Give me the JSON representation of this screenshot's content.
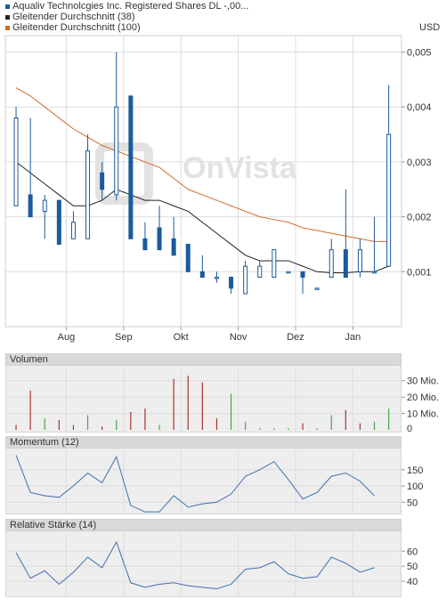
{
  "legend": {
    "title": "Aqualiv Technolcgies Inc. Registered Shares DL -,00...",
    "ma38": "Gleitender Durchschnitt (38)",
    "ma100": "Gleitender Durchschnitt (100)"
  },
  "currency": "USD",
  "watermark": "OnVista",
  "colors": {
    "up": "#1a5a9c",
    "ma38": "#222222",
    "ma100": "#d4682a",
    "vol_up": "#4aa64a",
    "vol_down": "#a83232",
    "ind": "#3f6fb0"
  },
  "chart_data": [
    {
      "type": "candlestick",
      "ylim": [
        0,
        0.0053
      ],
      "yticks": [
        0.001,
        0.002,
        0.003,
        0.004,
        0.005
      ],
      "ytick_labels": [
        "0,001",
        "0,002",
        "0,003",
        "0,004",
        "0,005"
      ],
      "xtick_labels": [
        "Aug",
        "Sep",
        "Okt",
        "Nov",
        "Dez",
        "Jan"
      ],
      "xtick_pos": [
        8,
        16,
        24,
        32,
        40,
        48
      ],
      "candles": [
        {
          "i": 1,
          "o": 0.0022,
          "h": 0.004,
          "l": 0.0022,
          "c": 0.0038
        },
        {
          "i": 3,
          "o": 0.0024,
          "h": 0.0038,
          "l": 0.002,
          "c": 0.002
        },
        {
          "i": 5,
          "o": 0.0021,
          "h": 0.0024,
          "l": 0.0016,
          "c": 0.0023
        },
        {
          "i": 7,
          "o": 0.0023,
          "h": 0.0023,
          "l": 0.0015,
          "c": 0.0015
        },
        {
          "i": 9,
          "o": 0.0016,
          "h": 0.0021,
          "l": 0.0016,
          "c": 0.0019
        },
        {
          "i": 11,
          "o": 0.0016,
          "h": 0.0035,
          "l": 0.0016,
          "c": 0.0032
        },
        {
          "i": 13,
          "o": 0.0028,
          "h": 0.003,
          "l": 0.0023,
          "c": 0.0025
        },
        {
          "i": 15,
          "o": 0.0024,
          "h": 0.005,
          "l": 0.0023,
          "c": 0.004
        },
        {
          "i": 17,
          "o": 0.0042,
          "h": 0.0042,
          "l": 0.0016,
          "c": 0.0016
        },
        {
          "i": 19,
          "o": 0.0016,
          "h": 0.0019,
          "l": 0.0014,
          "c": 0.0014
        },
        {
          "i": 21,
          "o": 0.0018,
          "h": 0.0022,
          "l": 0.0014,
          "c": 0.0014
        },
        {
          "i": 23,
          "o": 0.0016,
          "h": 0.002,
          "l": 0.0013,
          "c": 0.0013
        },
        {
          "i": 25,
          "o": 0.0015,
          "h": 0.0015,
          "l": 0.001,
          "c": 0.001
        },
        {
          "i": 27,
          "o": 0.001,
          "h": 0.0013,
          "l": 0.0009,
          "c": 0.0009
        },
        {
          "i": 29,
          "o": 0.0009,
          "h": 0.001,
          "l": 0.0008,
          "c": 0.0009
        },
        {
          "i": 31,
          "o": 0.0009,
          "h": 0.0009,
          "l": 0.0006,
          "c": 0.0007
        },
        {
          "i": 33,
          "o": 0.0006,
          "h": 0.0012,
          "l": 0.0006,
          "c": 0.0011
        },
        {
          "i": 35,
          "o": 0.0009,
          "h": 0.0012,
          "l": 0.0009,
          "c": 0.0011
        },
        {
          "i": 37,
          "o": 0.0009,
          "h": 0.0014,
          "l": 0.0009,
          "c": 0.0014
        },
        {
          "i": 39,
          "o": 0.001,
          "h": 0.001,
          "l": 0.001,
          "c": 0.001
        },
        {
          "i": 41,
          "o": 0.001,
          "h": 0.001,
          "l": 0.0006,
          "c": 0.0009
        },
        {
          "i": 43,
          "o": 0.0007,
          "h": 0.0007,
          "l": 0.0007,
          "c": 0.0007
        },
        {
          "i": 45,
          "o": 0.0009,
          "h": 0.0016,
          "l": 0.0009,
          "c": 0.0014
        },
        {
          "i": 47,
          "o": 0.0014,
          "h": 0.0025,
          "l": 0.0009,
          "c": 0.0009
        },
        {
          "i": 49,
          "o": 0.001,
          "h": 0.0016,
          "l": 0.0009,
          "c": 0.0014
        },
        {
          "i": 51,
          "o": 0.001,
          "h": 0.002,
          "l": 0.001,
          "c": 0.001
        },
        {
          "i": 53,
          "o": 0.0011,
          "h": 0.0044,
          "l": 0.0011,
          "c": 0.0035
        }
      ],
      "ma38": [
        [
          1,
          0.003
        ],
        [
          3,
          0.0028
        ],
        [
          5,
          0.0026
        ],
        [
          7,
          0.0024
        ],
        [
          9,
          0.0022
        ],
        [
          11,
          0.0022
        ],
        [
          13,
          0.0023
        ],
        [
          15,
          0.0025
        ],
        [
          17,
          0.0024
        ],
        [
          19,
          0.0023
        ],
        [
          21,
          0.0023
        ],
        [
          23,
          0.0022
        ],
        [
          25,
          0.0021
        ],
        [
          27,
          0.0019
        ],
        [
          29,
          0.0017
        ],
        [
          31,
          0.0015
        ],
        [
          33,
          0.0013
        ],
        [
          35,
          0.0012
        ],
        [
          37,
          0.0012
        ],
        [
          39,
          0.0012
        ],
        [
          41,
          0.0011
        ],
        [
          43,
          0.001
        ],
        [
          45,
          0.00098
        ],
        [
          47,
          0.00098
        ],
        [
          49,
          0.001
        ],
        [
          51,
          0.001
        ],
        [
          53,
          0.0011
        ]
      ],
      "ma100": [
        [
          1,
          0.00435
        ],
        [
          3,
          0.0042
        ],
        [
          5,
          0.004
        ],
        [
          7,
          0.0038
        ],
        [
          9,
          0.0036
        ],
        [
          11,
          0.00345
        ],
        [
          13,
          0.0033
        ],
        [
          15,
          0.0032
        ],
        [
          17,
          0.0031
        ],
        [
          19,
          0.003
        ],
        [
          21,
          0.0029
        ],
        [
          23,
          0.0027
        ],
        [
          25,
          0.0025
        ],
        [
          27,
          0.0024
        ],
        [
          29,
          0.0023
        ],
        [
          31,
          0.0022
        ],
        [
          33,
          0.0021
        ],
        [
          35,
          0.002
        ],
        [
          37,
          0.00195
        ],
        [
          39,
          0.0019
        ],
        [
          41,
          0.0018
        ],
        [
          43,
          0.00175
        ],
        [
          45,
          0.0017
        ],
        [
          47,
          0.00165
        ],
        [
          49,
          0.0016
        ],
        [
          51,
          0.00155
        ],
        [
          53,
          0.00155
        ]
      ]
    },
    {
      "type": "bar",
      "title": "Volumen",
      "ylim": [
        0,
        38
      ],
      "yticks": [
        10,
        20,
        30
      ],
      "ytick_labels": [
        "10 Mio.",
        "20 Mio.",
        "30 Mio."
      ],
      "extra_label": "0",
      "bars": [
        {
          "i": 1,
          "v": 3,
          "d": "down"
        },
        {
          "i": 3,
          "v": 24,
          "d": "down"
        },
        {
          "i": 5,
          "v": 7,
          "d": "up"
        },
        {
          "i": 7,
          "v": 6,
          "d": "down"
        },
        {
          "i": 9,
          "v": 3,
          "d": "down"
        },
        {
          "i": 11,
          "v": 9,
          "d": "up"
        },
        {
          "i": 13,
          "v": 2,
          "d": "down"
        },
        {
          "i": 15,
          "v": 6,
          "d": "up"
        },
        {
          "i": 17,
          "v": 11,
          "d": "down"
        },
        {
          "i": 19,
          "v": 13,
          "d": "down"
        },
        {
          "i": 21,
          "v": 3,
          "d": "up"
        },
        {
          "i": 23,
          "v": 31,
          "d": "down"
        },
        {
          "i": 25,
          "v": 33,
          "d": "down"
        },
        {
          "i": 27,
          "v": 29,
          "d": "down"
        },
        {
          "i": 29,
          "v": 7,
          "d": "down"
        },
        {
          "i": 31,
          "v": 22,
          "d": "up"
        },
        {
          "i": 33,
          "v": 5,
          "d": "up"
        },
        {
          "i": 35,
          "v": 1,
          "d": "up"
        },
        {
          "i": 37,
          "v": 1,
          "d": "up"
        },
        {
          "i": 39,
          "v": 1,
          "d": "up"
        },
        {
          "i": 41,
          "v": 4,
          "d": "down"
        },
        {
          "i": 43,
          "v": 1,
          "d": "up"
        },
        {
          "i": 45,
          "v": 9,
          "d": "up"
        },
        {
          "i": 47,
          "v": 12,
          "d": "down"
        },
        {
          "i": 49,
          "v": 4,
          "d": "down"
        },
        {
          "i": 51,
          "v": 5,
          "d": "up"
        },
        {
          "i": 53,
          "v": 13,
          "d": "up"
        }
      ]
    },
    {
      "type": "line",
      "title": "Momentum (12)",
      "ylim": [
        15,
        210
      ],
      "yticks": [
        50,
        100,
        150
      ],
      "ytick_labels": [
        "50",
        "100",
        "150"
      ],
      "points": [
        [
          1,
          195
        ],
        [
          3,
          80
        ],
        [
          5,
          70
        ],
        [
          7,
          65
        ],
        [
          9,
          100
        ],
        [
          11,
          140
        ],
        [
          13,
          110
        ],
        [
          15,
          190
        ],
        [
          17,
          40
        ],
        [
          19,
          20
        ],
        [
          21,
          20
        ],
        [
          23,
          70
        ],
        [
          25,
          35
        ],
        [
          27,
          45
        ],
        [
          29,
          50
        ],
        [
          31,
          75
        ],
        [
          33,
          130
        ],
        [
          35,
          150
        ],
        [
          37,
          175
        ],
        [
          39,
          120
        ],
        [
          41,
          60
        ],
        [
          43,
          80
        ],
        [
          45,
          130
        ],
        [
          47,
          140
        ],
        [
          49,
          115
        ],
        [
          51,
          70
        ]
      ]
    },
    {
      "type": "line",
      "title": "Relative Stärke (14)",
      "ylim": [
        30,
        72
      ],
      "yticks": [
        40,
        50,
        60
      ],
      "ytick_labels": [
        "40",
        "50",
        "60"
      ],
      "points": [
        [
          1,
          59
        ],
        [
          3,
          42
        ],
        [
          5,
          47
        ],
        [
          7,
          38
        ],
        [
          9,
          46
        ],
        [
          11,
          56
        ],
        [
          13,
          49
        ],
        [
          15,
          66
        ],
        [
          17,
          39
        ],
        [
          19,
          36
        ],
        [
          21,
          38
        ],
        [
          23,
          39
        ],
        [
          25,
          37
        ],
        [
          27,
          36
        ],
        [
          29,
          35
        ],
        [
          31,
          38
        ],
        [
          33,
          48
        ],
        [
          35,
          49
        ],
        [
          37,
          53
        ],
        [
          39,
          45
        ],
        [
          41,
          42
        ],
        [
          43,
          43
        ],
        [
          45,
          56
        ],
        [
          47,
          52
        ],
        [
          49,
          46
        ],
        [
          51,
          49
        ]
      ]
    }
  ]
}
